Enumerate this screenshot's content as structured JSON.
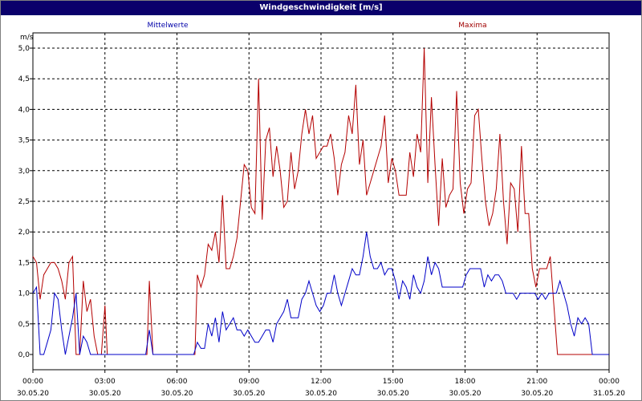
{
  "window": {
    "title": "Windgeschwindigkeit [m/s]"
  },
  "chart_data": {
    "type": "line",
    "title": "Windgeschwindigkeit [m/s]",
    "ylabel": "m/s",
    "xlabel": "",
    "ylim": [
      0,
      5
    ],
    "y_ticks": [
      "0,0",
      "0,5",
      "1,0",
      "1,5",
      "2,0",
      "2,5",
      "3,0",
      "3,5",
      "4,0",
      "4,5",
      "5,0"
    ],
    "x_ticks": [
      {
        "time": "00:00",
        "date": "30.05.20"
      },
      {
        "time": "03:00",
        "date": "30.05.20"
      },
      {
        "time": "06:00",
        "date": "30.05.20"
      },
      {
        "time": "09:00",
        "date": "30.05.20"
      },
      {
        "time": "12:00",
        "date": "30.05.20"
      },
      {
        "time": "15:00",
        "date": "30.05.20"
      },
      {
        "time": "18:00",
        "date": "30.05.20"
      },
      {
        "time": "21:00",
        "date": "30.05.20"
      },
      {
        "time": "00:00",
        "date": "31.05.20"
      }
    ],
    "grid": true,
    "legend_placement": "top",
    "x_unit": "hours since 30.05.20 00:00",
    "xlim": [
      0,
      24
    ],
    "series": [
      {
        "name": "Mittelwerte",
        "color": "#0000c8",
        "points": [
          [
            0,
            1.0
          ],
          [
            0.15,
            1.1
          ],
          [
            0.3,
            0.0
          ],
          [
            0.45,
            0.0
          ],
          [
            0.6,
            0.2
          ],
          [
            0.75,
            0.4
          ],
          [
            0.9,
            1.0
          ],
          [
            1.05,
            0.9
          ],
          [
            1.2,
            0.4
          ],
          [
            1.35,
            0.0
          ],
          [
            1.5,
            0.3
          ],
          [
            1.65,
            0.6
          ],
          [
            1.8,
            1.0
          ],
          [
            1.95,
            0.0
          ],
          [
            2.1,
            0.3
          ],
          [
            2.25,
            0.2
          ],
          [
            2.4,
            0.0
          ],
          [
            2.55,
            0.0
          ],
          [
            2.7,
            0.0
          ],
          [
            2.85,
            0.0
          ],
          [
            3.0,
            0.0
          ],
          [
            3.5,
            0.0
          ],
          [
            4.0,
            0.0
          ],
          [
            4.5,
            0.0
          ],
          [
            4.7,
            0.0
          ],
          [
            4.85,
            0.4
          ],
          [
            5.0,
            0.0
          ],
          [
            5.5,
            0.0
          ],
          [
            6.0,
            0.0
          ],
          [
            6.5,
            0.0
          ],
          [
            6.7,
            0.0
          ],
          [
            6.85,
            0.2
          ],
          [
            7.0,
            0.1
          ],
          [
            7.15,
            0.1
          ],
          [
            7.3,
            0.5
          ],
          [
            7.45,
            0.3
          ],
          [
            7.6,
            0.6
          ],
          [
            7.75,
            0.2
          ],
          [
            7.9,
            0.7
          ],
          [
            8.05,
            0.4
          ],
          [
            8.2,
            0.5
          ],
          [
            8.35,
            0.6
          ],
          [
            8.5,
            0.4
          ],
          [
            8.65,
            0.4
          ],
          [
            8.8,
            0.3
          ],
          [
            8.95,
            0.4
          ],
          [
            9.1,
            0.3
          ],
          [
            9.25,
            0.2
          ],
          [
            9.4,
            0.2
          ],
          [
            9.55,
            0.3
          ],
          [
            9.7,
            0.4
          ],
          [
            9.85,
            0.4
          ],
          [
            10.0,
            0.2
          ],
          [
            10.15,
            0.5
          ],
          [
            10.3,
            0.6
          ],
          [
            10.45,
            0.7
          ],
          [
            10.6,
            0.9
          ],
          [
            10.75,
            0.6
          ],
          [
            10.9,
            0.6
          ],
          [
            11.05,
            0.6
          ],
          [
            11.2,
            0.9
          ],
          [
            11.35,
            1.0
          ],
          [
            11.5,
            1.2
          ],
          [
            11.65,
            1.0
          ],
          [
            11.8,
            0.8
          ],
          [
            11.95,
            0.7
          ],
          [
            12.1,
            0.8
          ],
          [
            12.25,
            1.0
          ],
          [
            12.4,
            1.0
          ],
          [
            12.55,
            1.3
          ],
          [
            12.7,
            1.0
          ],
          [
            12.85,
            0.8
          ],
          [
            13.0,
            1.0
          ],
          [
            13.15,
            1.2
          ],
          [
            13.3,
            1.4
          ],
          [
            13.45,
            1.3
          ],
          [
            13.6,
            1.3
          ],
          [
            13.75,
            1.6
          ],
          [
            13.9,
            2.0
          ],
          [
            14.05,
            1.6
          ],
          [
            14.2,
            1.4
          ],
          [
            14.35,
            1.4
          ],
          [
            14.5,
            1.5
          ],
          [
            14.65,
            1.3
          ],
          [
            14.8,
            1.4
          ],
          [
            14.95,
            1.4
          ],
          [
            15.1,
            1.2
          ],
          [
            15.25,
            0.9
          ],
          [
            15.4,
            1.2
          ],
          [
            15.55,
            1.1
          ],
          [
            15.7,
            0.9
          ],
          [
            15.85,
            1.3
          ],
          [
            16.0,
            1.1
          ],
          [
            16.15,
            1.0
          ],
          [
            16.3,
            1.2
          ],
          [
            16.45,
            1.6
          ],
          [
            16.6,
            1.3
          ],
          [
            16.75,
            1.5
          ],
          [
            16.9,
            1.4
          ],
          [
            17.05,
            1.1
          ],
          [
            17.5,
            1.1
          ],
          [
            17.9,
            1.1
          ],
          [
            18.05,
            1.3
          ],
          [
            18.2,
            1.4
          ],
          [
            18.35,
            1.4
          ],
          [
            18.5,
            1.4
          ],
          [
            18.65,
            1.4
          ],
          [
            18.8,
            1.1
          ],
          [
            18.95,
            1.3
          ],
          [
            19.1,
            1.2
          ],
          [
            19.25,
            1.3
          ],
          [
            19.4,
            1.3
          ],
          [
            19.55,
            1.2
          ],
          [
            19.7,
            1.0
          ],
          [
            19.85,
            1.0
          ],
          [
            20.0,
            1.0
          ],
          [
            20.15,
            0.9
          ],
          [
            20.3,
            1.0
          ],
          [
            20.45,
            1.0
          ],
          [
            20.6,
            1.0
          ],
          [
            20.75,
            1.0
          ],
          [
            20.9,
            1.0
          ],
          [
            21.05,
            0.9
          ],
          [
            21.2,
            1.0
          ],
          [
            21.35,
            0.9
          ],
          [
            21.5,
            1.0
          ],
          [
            21.65,
            1.0
          ],
          [
            21.8,
            1.0
          ],
          [
            21.95,
            1.2
          ],
          [
            22.1,
            1.0
          ],
          [
            22.25,
            0.8
          ],
          [
            22.4,
            0.5
          ],
          [
            22.55,
            0.3
          ],
          [
            22.7,
            0.6
          ],
          [
            22.85,
            0.5
          ],
          [
            23.0,
            0.6
          ],
          [
            23.15,
            0.5
          ],
          [
            23.3,
            0.0
          ],
          [
            24.0,
            0.0
          ]
        ]
      },
      {
        "name": "Maxima",
        "color": "#b40000",
        "points": [
          [
            0,
            1.6
          ],
          [
            0.15,
            1.5
          ],
          [
            0.3,
            0.9
          ],
          [
            0.45,
            1.3
          ],
          [
            0.6,
            1.4
          ],
          [
            0.75,
            1.5
          ],
          [
            0.9,
            1.5
          ],
          [
            1.05,
            1.4
          ],
          [
            1.2,
            1.2
          ],
          [
            1.35,
            0.9
          ],
          [
            1.5,
            1.5
          ],
          [
            1.65,
            1.6
          ],
          [
            1.8,
            0.0
          ],
          [
            1.95,
            0.0
          ],
          [
            2.1,
            1.2
          ],
          [
            2.25,
            0.7
          ],
          [
            2.4,
            0.9
          ],
          [
            2.55,
            0.3
          ],
          [
            2.7,
            0.0
          ],
          [
            2.85,
            0.0
          ],
          [
            3.0,
            0.8
          ],
          [
            3.1,
            0.0
          ],
          [
            3.5,
            0.0
          ],
          [
            4.0,
            0.0
          ],
          [
            4.5,
            0.0
          ],
          [
            4.75,
            0.0
          ],
          [
            4.85,
            1.2
          ],
          [
            5.0,
            0.0
          ],
          [
            5.5,
            0.0
          ],
          [
            6.0,
            0.0
          ],
          [
            6.6,
            0.0
          ],
          [
            6.75,
            0.0
          ],
          [
            6.85,
            1.3
          ],
          [
            7.0,
            1.1
          ],
          [
            7.15,
            1.3
          ],
          [
            7.3,
            1.8
          ],
          [
            7.45,
            1.7
          ],
          [
            7.6,
            2.0
          ],
          [
            7.75,
            1.5
          ],
          [
            7.9,
            2.6
          ],
          [
            8.05,
            1.4
          ],
          [
            8.2,
            1.4
          ],
          [
            8.35,
            1.6
          ],
          [
            8.5,
            1.9
          ],
          [
            8.65,
            2.5
          ],
          [
            8.8,
            3.1
          ],
          [
            8.95,
            3.0
          ],
          [
            9.1,
            2.4
          ],
          [
            9.25,
            2.3
          ],
          [
            9.4,
            4.5
          ],
          [
            9.55,
            2.2
          ],
          [
            9.7,
            3.5
          ],
          [
            9.85,
            3.7
          ],
          [
            10.0,
            2.9
          ],
          [
            10.15,
            3.4
          ],
          [
            10.3,
            3.0
          ],
          [
            10.45,
            2.4
          ],
          [
            10.6,
            2.5
          ],
          [
            10.75,
            3.3
          ],
          [
            10.9,
            2.7
          ],
          [
            11.05,
            3.0
          ],
          [
            11.2,
            3.6
          ],
          [
            11.35,
            4.0
          ],
          [
            11.5,
            3.6
          ],
          [
            11.65,
            3.9
          ],
          [
            11.8,
            3.2
          ],
          [
            11.95,
            3.3
          ],
          [
            12.1,
            3.4
          ],
          [
            12.25,
            3.4
          ],
          [
            12.4,
            3.6
          ],
          [
            12.55,
            3.2
          ],
          [
            12.7,
            2.6
          ],
          [
            12.85,
            3.1
          ],
          [
            13.0,
            3.3
          ],
          [
            13.15,
            3.9
          ],
          [
            13.3,
            3.6
          ],
          [
            13.45,
            4.4
          ],
          [
            13.6,
            3.1
          ],
          [
            13.75,
            3.5
          ],
          [
            13.9,
            2.6
          ],
          [
            14.05,
            2.8
          ],
          [
            14.2,
            3.0
          ],
          [
            14.35,
            3.2
          ],
          [
            14.5,
            3.4
          ],
          [
            14.65,
            3.9
          ],
          [
            14.8,
            2.8
          ],
          [
            14.95,
            3.2
          ],
          [
            15.1,
            3.0
          ],
          [
            15.25,
            2.6
          ],
          [
            15.4,
            2.6
          ],
          [
            15.55,
            2.6
          ],
          [
            15.7,
            3.3
          ],
          [
            15.85,
            2.9
          ],
          [
            16.0,
            3.6
          ],
          [
            16.15,
            3.3
          ],
          [
            16.3,
            5.0
          ],
          [
            16.45,
            2.8
          ],
          [
            16.6,
            4.2
          ],
          [
            16.75,
            3.1
          ],
          [
            16.9,
            2.1
          ],
          [
            17.05,
            3.2
          ],
          [
            17.2,
            2.4
          ],
          [
            17.35,
            2.6
          ],
          [
            17.5,
            2.7
          ],
          [
            17.65,
            4.3
          ],
          [
            17.8,
            2.8
          ],
          [
            17.95,
            2.3
          ],
          [
            18.1,
            2.7
          ],
          [
            18.25,
            2.8
          ],
          [
            18.4,
            3.9
          ],
          [
            18.55,
            4.0
          ],
          [
            18.7,
            3.2
          ],
          [
            18.85,
            2.5
          ],
          [
            19.0,
            2.1
          ],
          [
            19.15,
            2.3
          ],
          [
            19.3,
            2.7
          ],
          [
            19.45,
            3.6
          ],
          [
            19.6,
            2.5
          ],
          [
            19.75,
            1.8
          ],
          [
            19.9,
            2.8
          ],
          [
            20.05,
            2.7
          ],
          [
            20.2,
            2.0
          ],
          [
            20.35,
            3.4
          ],
          [
            20.5,
            2.3
          ],
          [
            20.65,
            2.3
          ],
          [
            20.8,
            1.4
          ],
          [
            20.95,
            1.1
          ],
          [
            21.1,
            1.4
          ],
          [
            21.25,
            1.4
          ],
          [
            21.4,
            1.4
          ],
          [
            21.55,
            1.6
          ],
          [
            21.7,
            0.8
          ],
          [
            21.85,
            0.0
          ],
          [
            24.0,
            0.0
          ]
        ]
      }
    ]
  }
}
